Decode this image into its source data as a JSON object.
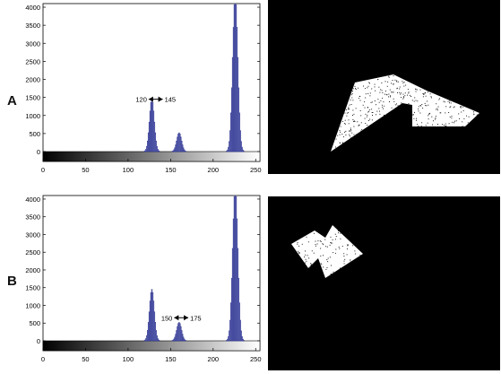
{
  "figure": {
    "panels": [
      {
        "label": "A",
        "annotation": {
          "left": "120",
          "right": "145"
        },
        "binary_image_desc_colors": {
          "background": "#000000",
          "shape": "#ffffff",
          "noise": "#222222"
        }
      },
      {
        "label": "B",
        "annotation": {
          "left": "150",
          "right": "175"
        },
        "binary_image_desc_colors": {
          "background": "#000000",
          "shape": "#ffffff",
          "noise": "#222222"
        }
      }
    ],
    "colors": {
      "bar_fill": "#7b7fc0",
      "bar_edge": "#2e3590",
      "axis": "#000000"
    }
  },
  "chart_data": [
    {
      "type": "bar",
      "xlim": [
        0,
        255
      ],
      "ylim": [
        0,
        4100
      ],
      "xticks": [
        0,
        50,
        100,
        150,
        200,
        250
      ],
      "yticks": [
        0,
        500,
        1000,
        1500,
        2000,
        2500,
        3000,
        3500,
        4000
      ],
      "peaks": [
        {
          "center": 128,
          "height": 1450,
          "width": 2.8
        },
        {
          "center": 160,
          "height": 520,
          "width": 2.8
        },
        {
          "center": 226,
          "height": 4300,
          "width": 3.0
        }
      ],
      "colorbar": "grayscale 0-255",
      "annotation": {
        "from": 120,
        "to": 145,
        "text_left": "120",
        "text_right": "145"
      }
    },
    {
      "type": "bar",
      "xlim": [
        0,
        255
      ],
      "ylim": [
        0,
        4100
      ],
      "xticks": [
        0,
        50,
        100,
        150,
        200,
        250
      ],
      "yticks": [
        0,
        500,
        1000,
        1500,
        2000,
        2500,
        3000,
        3500,
        4000
      ],
      "peaks": [
        {
          "center": 128,
          "height": 1450,
          "width": 2.8
        },
        {
          "center": 160,
          "height": 520,
          "width": 2.8
        },
        {
          "center": 226,
          "height": 4300,
          "width": 3.0
        }
      ],
      "colorbar": "grayscale 0-255",
      "annotation": {
        "from": 150,
        "to": 175,
        "text_left": "150",
        "text_right": "175"
      }
    }
  ]
}
